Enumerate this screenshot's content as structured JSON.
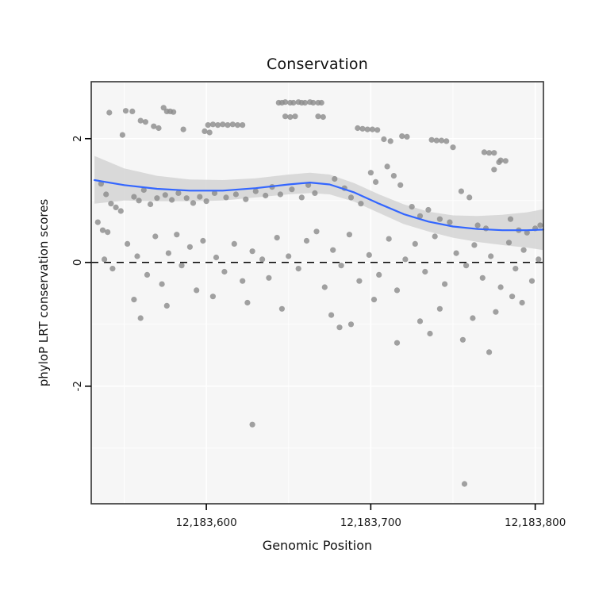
{
  "chart_data": {
    "type": "scatter",
    "title": "Conservation",
    "xlabel": "Genomic Position",
    "ylabel": "phyloP LRT conservation scores",
    "legend": "none",
    "grid": "major-and-minor",
    "xlim": [
      12183530,
      12183805
    ],
    "ylim": [
      -3.9,
      2.92
    ],
    "zero_line": 0,
    "x_ticks": [
      {
        "value": 12183600,
        "label": "12,183,600"
      },
      {
        "value": 12183700,
        "label": "12,183,700"
      },
      {
        "value": 12183800,
        "label": "12,183,800"
      }
    ],
    "y_ticks": [
      {
        "value": 2,
        "label": "2"
      },
      {
        "value": 0,
        "label": "0"
      },
      {
        "value": -2,
        "label": "-2"
      }
    ],
    "x_minor": [
      12183550,
      12183650,
      12183750
    ],
    "y_minor": [
      -3,
      -1,
      1
    ],
    "colors": {
      "point": "#8c8c8c",
      "smooth_line": "#3366ff",
      "ribbon": "#d4d4d4",
      "panel_bg": "#f6f6f6",
      "grid": "#ffffff",
      "border": "#333333",
      "axis_text": "#1a1a1a",
      "zero_line": "#000000"
    },
    "points": [
      [
        12183541,
        2.42
      ],
      [
        12183551,
        2.45
      ],
      [
        12183555,
        2.44
      ],
      [
        12183560,
        2.29
      ],
      [
        12183563,
        2.27
      ],
      [
        12183568,
        2.2
      ],
      [
        12183571,
        2.17
      ],
      [
        12183574,
        2.5
      ],
      [
        12183576,
        2.44
      ],
      [
        12183578,
        2.44
      ],
      [
        12183580,
        2.43
      ],
      [
        12183586,
        2.15
      ],
      [
        12183549,
        2.06
      ],
      [
        12183601,
        2.22
      ],
      [
        12183604,
        2.23
      ],
      [
        12183607,
        2.22
      ],
      [
        12183610,
        2.23
      ],
      [
        12183613,
        2.22
      ],
      [
        12183616,
        2.23
      ],
      [
        12183619,
        2.22
      ],
      [
        12183622,
        2.22
      ],
      [
        12183599,
        2.12
      ],
      [
        12183602,
        2.1
      ],
      [
        12183644,
        2.58
      ],
      [
        12183646,
        2.58
      ],
      [
        12183648,
        2.59
      ],
      [
        12183651,
        2.58
      ],
      [
        12183653,
        2.58
      ],
      [
        12183656,
        2.59
      ],
      [
        12183658,
        2.58
      ],
      [
        12183660,
        2.58
      ],
      [
        12183663,
        2.59
      ],
      [
        12183665,
        2.58
      ],
      [
        12183668,
        2.58
      ],
      [
        12183670,
        2.58
      ],
      [
        12183648,
        2.36
      ],
      [
        12183651,
        2.35
      ],
      [
        12183654,
        2.36
      ],
      [
        12183668,
        2.36
      ],
      [
        12183671,
        2.35
      ],
      [
        12183692,
        2.17
      ],
      [
        12183695,
        2.16
      ],
      [
        12183698,
        2.15
      ],
      [
        12183701,
        2.15
      ],
      [
        12183704,
        2.14
      ],
      [
        12183708,
        1.99
      ],
      [
        12183712,
        1.96
      ],
      [
        12183719,
        2.04
      ],
      [
        12183722,
        2.03
      ],
      [
        12183737,
        1.98
      ],
      [
        12183740,
        1.97
      ],
      [
        12183743,
        1.97
      ],
      [
        12183746,
        1.96
      ],
      [
        12183750,
        1.86
      ],
      [
        12183769,
        1.78
      ],
      [
        12183772,
        1.77
      ],
      [
        12183775,
        1.77
      ],
      [
        12183779,
        1.65
      ],
      [
        12183782,
        1.64
      ],
      [
        12183536,
        1.27
      ],
      [
        12183539,
        1.1
      ],
      [
        12183542,
        0.95
      ],
      [
        12183545,
        0.89
      ],
      [
        12183548,
        0.83
      ],
      [
        12183537,
        0.52
      ],
      [
        12183540,
        0.49
      ],
      [
        12183556,
        1.06
      ],
      [
        12183559,
        1.0
      ],
      [
        12183562,
        1.17
      ],
      [
        12183566,
        0.94
      ],
      [
        12183570,
        1.04
      ],
      [
        12183575,
        1.09
      ],
      [
        12183579,
        1.01
      ],
      [
        12183583,
        1.12
      ],
      [
        12183588,
        1.04
      ],
      [
        12183592,
        0.96
      ],
      [
        12183596,
        1.06
      ],
      [
        12183600,
        0.99
      ],
      [
        12183605,
        1.12
      ],
      [
        12183612,
        1.05
      ],
      [
        12183618,
        1.1
      ],
      [
        12183624,
        1.02
      ],
      [
        12183630,
        1.15
      ],
      [
        12183636,
        1.08
      ],
      [
        12183640,
        1.22
      ],
      [
        12183645,
        1.1
      ],
      [
        12183652,
        1.18
      ],
      [
        12183658,
        1.05
      ],
      [
        12183662,
        1.25
      ],
      [
        12183666,
        1.12
      ],
      [
        12183678,
        1.35
      ],
      [
        12183684,
        1.2
      ],
      [
        12183688,
        1.05
      ],
      [
        12183694,
        0.95
      ],
      [
        12183700,
        1.45
      ],
      [
        12183703,
        1.3
      ],
      [
        12183710,
        1.55
      ],
      [
        12183714,
        1.4
      ],
      [
        12183718,
        1.25
      ],
      [
        12183725,
        0.9
      ],
      [
        12183730,
        0.75
      ],
      [
        12183735,
        0.85
      ],
      [
        12183742,
        0.7
      ],
      [
        12183748,
        0.65
      ],
      [
        12183755,
        1.15
      ],
      [
        12183760,
        1.05
      ],
      [
        12183765,
        0.6
      ],
      [
        12183770,
        0.55
      ],
      [
        12183775,
        1.5
      ],
      [
        12183778,
        1.62
      ],
      [
        12183785,
        0.7
      ],
      [
        12183790,
        0.52
      ],
      [
        12183795,
        0.48
      ],
      [
        12183800,
        0.55
      ],
      [
        12183803,
        0.6
      ],
      [
        12183534,
        0.65
      ],
      [
        12183538,
        0.05
      ],
      [
        12183543,
        -0.1
      ],
      [
        12183552,
        0.3
      ],
      [
        12183558,
        0.1
      ],
      [
        12183564,
        -0.2
      ],
      [
        12183569,
        0.42
      ],
      [
        12183573,
        -0.35
      ],
      [
        12183577,
        0.15
      ],
      [
        12183582,
        0.45
      ],
      [
        12183585,
        -0.05
      ],
      [
        12183590,
        0.25
      ],
      [
        12183594,
        -0.45
      ],
      [
        12183598,
        0.35
      ],
      [
        12183606,
        0.08
      ],
      [
        12183611,
        -0.15
      ],
      [
        12183617,
        0.3
      ],
      [
        12183622,
        -0.3
      ],
      [
        12183628,
        0.18
      ],
      [
        12183634,
        0.05
      ],
      [
        12183638,
        -0.25
      ],
      [
        12183643,
        0.4
      ],
      [
        12183650,
        0.1
      ],
      [
        12183656,
        -0.1
      ],
      [
        12183661,
        0.35
      ],
      [
        12183667,
        0.5
      ],
      [
        12183672,
        -0.4
      ],
      [
        12183677,
        0.2
      ],
      [
        12183682,
        -0.05
      ],
      [
        12183687,
        0.45
      ],
      [
        12183693,
        -0.3
      ],
      [
        12183699,
        0.12
      ],
      [
        12183705,
        -0.2
      ],
      [
        12183711,
        0.38
      ],
      [
        12183716,
        -0.45
      ],
      [
        12183721,
        0.05
      ],
      [
        12183727,
        0.3
      ],
      [
        12183733,
        -0.15
      ],
      [
        12183739,
        0.42
      ],
      [
        12183745,
        -0.35
      ],
      [
        12183752,
        0.15
      ],
      [
        12183758,
        -0.05
      ],
      [
        12183763,
        0.28
      ],
      [
        12183768,
        -0.25
      ],
      [
        12183773,
        0.1
      ],
      [
        12183779,
        -0.4
      ],
      [
        12183784,
        0.32
      ],
      [
        12183788,
        -0.1
      ],
      [
        12183793,
        0.2
      ],
      [
        12183798,
        -0.3
      ],
      [
        12183802,
        0.05
      ],
      [
        12183556,
        -0.6
      ],
      [
        12183560,
        -0.9
      ],
      [
        12183576,
        -0.7
      ],
      [
        12183604,
        -0.55
      ],
      [
        12183625,
        -0.65
      ],
      [
        12183646,
        -0.75
      ],
      [
        12183676,
        -0.85
      ],
      [
        12183681,
        -1.05
      ],
      [
        12183688,
        -1.0
      ],
      [
        12183702,
        -0.6
      ],
      [
        12183716,
        -1.3
      ],
      [
        12183730,
        -0.95
      ],
      [
        12183736,
        -1.15
      ],
      [
        12183742,
        -0.75
      ],
      [
        12183756,
        -1.25
      ],
      [
        12183762,
        -0.9
      ],
      [
        12183772,
        -1.45
      ],
      [
        12183776,
        -0.8
      ],
      [
        12183786,
        -0.55
      ],
      [
        12183792,
        -0.65
      ],
      [
        12183628,
        -2.62
      ],
      [
        12183757,
        -3.58
      ]
    ],
    "smooth": [
      [
        12183532,
        1.33,
        0.95,
        1.72
      ],
      [
        12183550,
        1.25,
        1.0,
        1.52
      ],
      [
        12183570,
        1.19,
        0.99,
        1.4
      ],
      [
        12183590,
        1.16,
        0.99,
        1.34
      ],
      [
        12183610,
        1.16,
        1.0,
        1.33
      ],
      [
        12183630,
        1.2,
        1.05,
        1.36
      ],
      [
        12183650,
        1.26,
        1.1,
        1.42
      ],
      [
        12183663,
        1.29,
        1.12,
        1.45
      ],
      [
        12183675,
        1.26,
        1.1,
        1.42
      ],
      [
        12183690,
        1.13,
        0.98,
        1.28
      ],
      [
        12183705,
        0.95,
        0.8,
        1.1
      ],
      [
        12183720,
        0.78,
        0.62,
        0.94
      ],
      [
        12183735,
        0.66,
        0.5,
        0.82
      ],
      [
        12183750,
        0.58,
        0.4,
        0.76
      ],
      [
        12183765,
        0.54,
        0.33,
        0.75
      ],
      [
        12183780,
        0.52,
        0.28,
        0.77
      ],
      [
        12183795,
        0.52,
        0.24,
        0.81
      ],
      [
        12183805,
        0.53,
        0.2,
        0.86
      ]
    ]
  }
}
